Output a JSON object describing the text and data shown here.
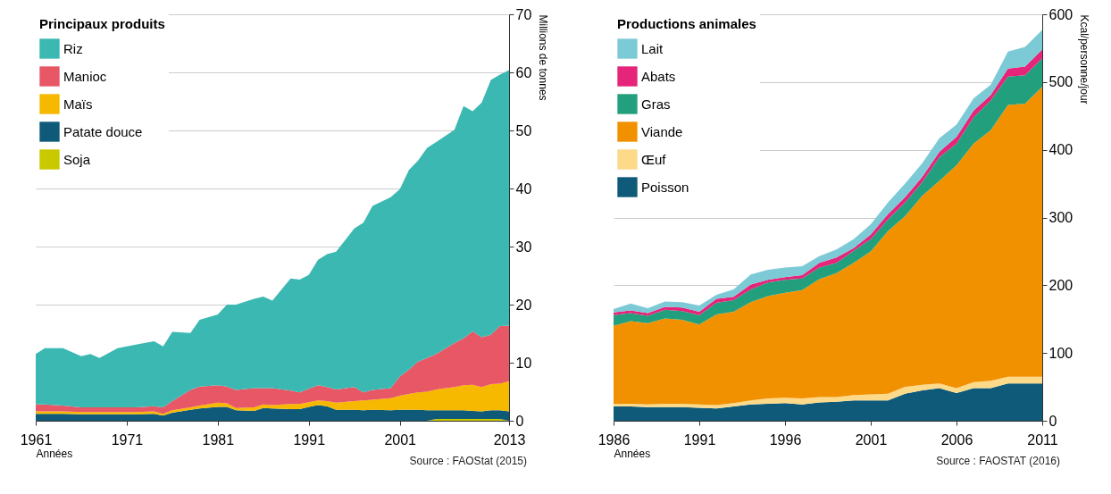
{
  "chart_data": [
    {
      "type": "area",
      "stacked": true,
      "legend_title": "Principaux produits",
      "xlabel": "Années",
      "ylabel": "Millions de tonnes",
      "x": [
        1961,
        1962,
        1964,
        1966,
        1967,
        1968,
        1970,
        1972,
        1974,
        1975,
        1976,
        1978,
        1979,
        1981,
        1982,
        1983,
        1985,
        1986,
        1987,
        1989,
        1990,
        1991,
        1992,
        1993,
        1994,
        1996,
        1997,
        1998,
        2000,
        2001,
        2002,
        2003,
        2004,
        2005,
        2007,
        2008,
        2009,
        2010,
        2011,
        2012,
        2013
      ],
      "series": [
        {
          "name": "Soja",
          "color": "#c9c900",
          "values": [
            0,
            0,
            0,
            0,
            0,
            0,
            0,
            0,
            0,
            0,
            0,
            0,
            0,
            0,
            0,
            0,
            0,
            0,
            0,
            0,
            0,
            0,
            0,
            0,
            0,
            0,
            0,
            0,
            0,
            0,
            0,
            0,
            0,
            0.3,
            0.3,
            0.3,
            0.3,
            0.3,
            0.3,
            0.3,
            0
          ]
        },
        {
          "name": "Patate douce",
          "color": "#0f5a78",
          "values": [
            1.2,
            1.2,
            1.2,
            1.1,
            1.1,
            1.1,
            1.1,
            1.1,
            1.2,
            0.9,
            1.4,
            1.9,
            2.1,
            2.4,
            2.4,
            1.8,
            1.7,
            2.2,
            2.1,
            2.0,
            2.0,
            2.4,
            2.7,
            2.5,
            1.9,
            1.9,
            1.8,
            1.9,
            1.8,
            1.9,
            1.9,
            1.9,
            1.8,
            1.5,
            1.5,
            1.5,
            1.4,
            1.3,
            1.5,
            1.5,
            1.6
          ]
        },
        {
          "name": "Maïs",
          "color": "#f7b800",
          "values": [
            0.4,
            0.4,
            0.4,
            0.4,
            0.4,
            0.4,
            0.4,
            0.4,
            0.4,
            0.3,
            0.4,
            0.4,
            0.5,
            0.7,
            0.6,
            0.4,
            0.6,
            0.6,
            0.6,
            0.9,
            0.9,
            0.8,
            0.8,
            0.9,
            1.2,
            1.5,
            1.7,
            1.7,
            2.1,
            2.4,
            2.7,
            3.0,
            3.2,
            3.6,
            4.0,
            4.3,
            4.5,
            4.2,
            4.5,
            4.6,
            5.2
          ]
        },
        {
          "name": "Manioc",
          "color": "#e85766",
          "values": [
            1.2,
            1.2,
            1.0,
            0.8,
            0.8,
            0.8,
            0.8,
            0.8,
            0.9,
            1.1,
            1.6,
            3.0,
            3.3,
            3.0,
            2.9,
            3.1,
            3.3,
            2.8,
            2.9,
            2.3,
            2.0,
            2.3,
            2.6,
            2.4,
            2.3,
            2.4,
            1.4,
            1.7,
            1.7,
            3.3,
            4.2,
            5.3,
            5.8,
            6.1,
            7.6,
            8.1,
            9.2,
            8.6,
            8.5,
            9.9,
            9.6
          ]
        },
        {
          "name": "Riz",
          "color": "#3cb8b2",
          "values": [
            8.7,
            9.7,
            9.9,
            8.8,
            9.2,
            8.5,
            10.2,
            10.8,
            11.2,
            10.5,
            11.9,
            9.8,
            11.5,
            12.2,
            14.1,
            14.7,
            15.4,
            15.8,
            15.1,
            19.3,
            19.4,
            19.6,
            21.6,
            22.9,
            23.7,
            27.3,
            29.2,
            31.7,
            32.9,
            32.3,
            34.4,
            34.6,
            36.2,
            36.5,
            36.7,
            40.0,
            37.9,
            40.4,
            43.9,
            43.3,
            44.0
          ]
        }
      ],
      "xlim": [
        1961,
        2013
      ],
      "xticks": [
        1961,
        1971,
        1981,
        1991,
        2001,
        2013
      ],
      "ylim": [
        0,
        70
      ],
      "yticks": [
        0,
        10,
        20,
        30,
        40,
        50,
        60,
        70
      ],
      "grid": "y",
      "legend": "top left",
      "annotations": [
        "Source : FAOStat (2015)"
      ]
    },
    {
      "type": "area",
      "stacked": true,
      "legend_title": "Productions animales",
      "xlabel": "Années",
      "ylabel": "Kcal/personne/jour",
      "x": [
        1986,
        1987,
        1988,
        1989,
        1990,
        1991,
        1992,
        1993,
        1994,
        1995,
        1996,
        1997,
        1998,
        1999,
        2000,
        2001,
        2002,
        2003,
        2004,
        2005,
        2006,
        2007,
        2008,
        2009,
        2010,
        2011
      ],
      "series": [
        {
          "name": "Poisson",
          "color": "#0f5a78",
          "values": [
            21,
            21,
            20,
            20,
            20,
            19,
            18,
            21,
            24,
            25,
            26,
            24,
            27,
            28,
            30,
            30,
            30,
            40,
            45,
            48,
            41,
            48,
            48,
            55,
            55,
            55
          ]
        },
        {
          "name": "Œuf",
          "color": "#fdd98a",
          "values": [
            4,
            4,
            4,
            5,
            5,
            5,
            5,
            5,
            6,
            8,
            8,
            9,
            8,
            7,
            8,
            9,
            10,
            10,
            8,
            7,
            7,
            9,
            11,
            10,
            10,
            10
          ]
        },
        {
          "name": "Viande",
          "color": "#f29100",
          "values": [
            115,
            122,
            120,
            126,
            124,
            118,
            134,
            135,
            145,
            151,
            155,
            160,
            174,
            183,
            195,
            211,
            240,
            252,
            279,
            299,
            329,
            352,
            370,
            401,
            403,
            428
          ]
        },
        {
          "name": "Gras",
          "color": "#22a07d",
          "values": [
            16,
            12,
            11,
            13,
            13,
            14,
            17,
            17,
            19,
            20,
            19,
            17,
            17,
            15,
            18,
            18,
            17,
            20,
            20,
            35,
            32,
            39,
            44,
            42,
            42,
            42
          ]
        },
        {
          "name": "Abats",
          "color": "#e5247a",
          "values": [
            4,
            4,
            4,
            4,
            5,
            5,
            6,
            5,
            7,
            4,
            4,
            5,
            7,
            8,
            4,
            7,
            8,
            8,
            8,
            8,
            10,
            10,
            8,
            12,
            13,
            13
          ]
        },
        {
          "name": "Lait",
          "color": "#7ccad6",
          "values": [
            5,
            10,
            7,
            8,
            8,
            9,
            6,
            11,
            15,
            15,
            14,
            13,
            10,
            12,
            13,
            15,
            17,
            20,
            20,
            20,
            18,
            18,
            15,
            25,
            29,
            29
          ]
        }
      ],
      "xlim": [
        1986,
        2011
      ],
      "xticks": [
        1986,
        1991,
        1996,
        2001,
        2006,
        2011
      ],
      "ylim": [
        0,
        600
      ],
      "yticks": [
        0,
        100,
        200,
        300,
        400,
        500,
        600
      ],
      "grid": "y",
      "legend": "top left",
      "annotations": [
        "Source : FAOSTAT (2016)"
      ]
    }
  ]
}
